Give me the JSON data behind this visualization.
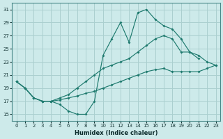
{
  "xlabel": "Humidex (Indice chaleur)",
  "bg_color": "#cdeaea",
  "grid_color": "#aacfcf",
  "line_color": "#1e7a6e",
  "xlim": [
    -0.5,
    23.5
  ],
  "ylim": [
    14.0,
    32.0
  ],
  "xticks": [
    0,
    1,
    2,
    3,
    4,
    5,
    6,
    7,
    8,
    9,
    10,
    11,
    12,
    13,
    14,
    15,
    16,
    17,
    18,
    19,
    20,
    21,
    22,
    23
  ],
  "yticks": [
    15,
    17,
    19,
    21,
    23,
    25,
    27,
    29,
    31
  ],
  "line1_x": [
    0,
    1,
    2,
    3,
    4,
    5,
    6,
    7,
    8,
    9,
    10,
    11,
    12,
    13,
    14,
    15,
    16,
    17,
    18,
    19,
    20,
    21
  ],
  "line1_y": [
    20.0,
    19.0,
    17.5,
    17.0,
    17.0,
    16.5,
    15.5,
    15.0,
    15.0,
    17.0,
    24.0,
    26.5,
    29.0,
    26.0,
    30.5,
    31.0,
    29.5,
    28.5,
    28.0,
    26.5,
    24.5,
    23.5
  ],
  "line2_x": [
    0,
    1,
    2,
    3,
    4,
    5,
    6,
    7,
    8,
    9,
    10,
    11,
    12,
    13,
    14,
    15,
    16,
    17,
    18,
    19,
    20,
    21,
    22,
    23
  ],
  "line2_y": [
    20.0,
    19.0,
    17.5,
    17.0,
    17.0,
    17.5,
    18.0,
    19.0,
    20.0,
    21.0,
    22.0,
    22.5,
    23.0,
    23.5,
    24.5,
    25.5,
    26.5,
    27.0,
    26.5,
    24.5,
    24.5,
    24.0,
    23.0,
    22.5
  ],
  "line3_x": [
    0,
    1,
    2,
    3,
    4,
    5,
    6,
    7,
    8,
    9,
    10,
    11,
    12,
    13,
    14,
    15,
    16,
    17,
    18,
    19,
    20,
    21,
    22,
    23
  ],
  "line3_y": [
    20.0,
    19.0,
    17.5,
    17.0,
    17.0,
    17.2,
    17.5,
    17.8,
    18.2,
    18.5,
    19.0,
    19.5,
    20.0,
    20.5,
    21.0,
    21.5,
    21.8,
    22.0,
    21.5,
    21.5,
    21.5,
    21.5,
    22.0,
    22.5
  ]
}
